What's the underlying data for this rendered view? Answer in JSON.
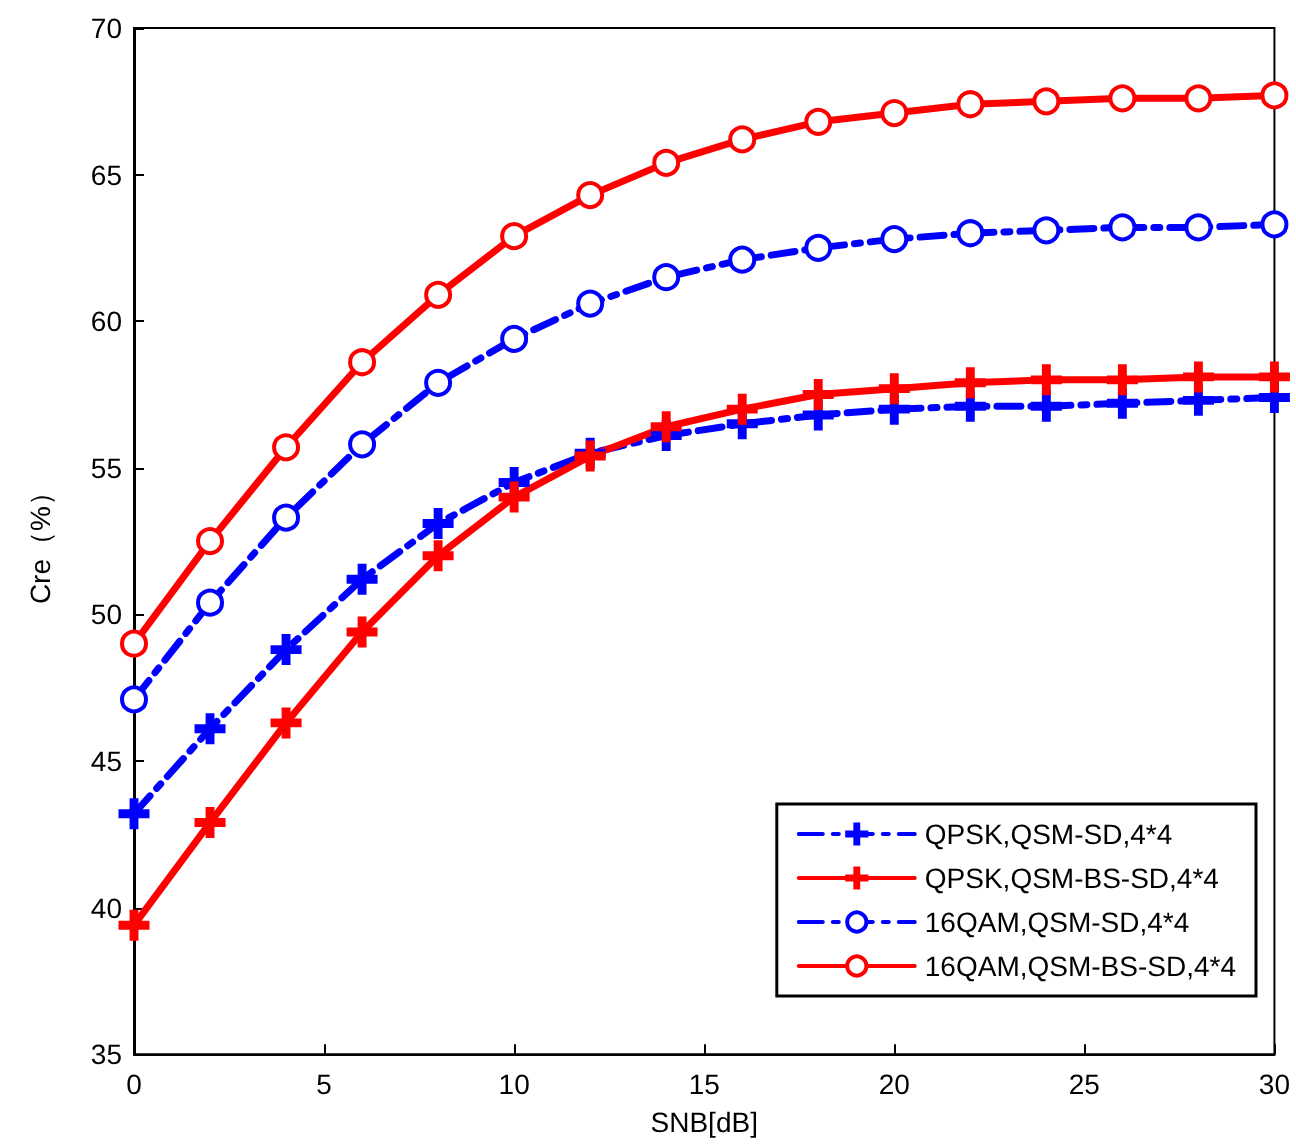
{
  "chart_data": {
    "type": "line",
    "xlabel": "SNB[dB]",
    "ylabel": "Cre（%）",
    "x": [
      0,
      2,
      4,
      6,
      8,
      10,
      12,
      14,
      16,
      18,
      20,
      22,
      24,
      26,
      28,
      30
    ],
    "series": [
      {
        "name": "QPSK,QSM-SD,4*4",
        "color": "#0000ff",
        "marker": "cross",
        "line_style": "dashdot",
        "values": [
          43.2,
          46.1,
          48.8,
          51.2,
          53.1,
          54.5,
          55.5,
          56.1,
          56.5,
          56.8,
          57.0,
          57.1,
          57.1,
          57.2,
          57.3,
          57.4
        ]
      },
      {
        "name": "QPSK,QSM-BS-SD,4*4",
        "color": "#ff0000",
        "marker": "cross",
        "line_style": "solid",
        "values": [
          39.4,
          42.9,
          46.3,
          49.4,
          52.0,
          54.0,
          55.4,
          56.4,
          57.0,
          57.5,
          57.7,
          57.9,
          58.0,
          58.0,
          58.1,
          58.1
        ]
      },
      {
        "name": "16QAM,QSM-SD,4*4",
        "color": "#0000ff",
        "marker": "circle",
        "line_style": "dashdot",
        "values": [
          47.1,
          50.4,
          53.3,
          55.8,
          57.9,
          59.4,
          60.6,
          61.5,
          62.1,
          62.5,
          62.8,
          63.0,
          63.1,
          63.2,
          63.2,
          63.3
        ]
      },
      {
        "name": "16QAM,QSM-BS-SD,4*4",
        "color": "#ff0000",
        "marker": "circle",
        "line_style": "solid",
        "values": [
          49.0,
          52.5,
          55.7,
          58.6,
          60.9,
          62.9,
          64.3,
          65.4,
          66.2,
          66.8,
          67.1,
          67.4,
          67.5,
          67.6,
          67.6,
          67.7
        ]
      }
    ],
    "xlim": [
      0,
      30
    ],
    "xticks": [
      0,
      5,
      10,
      15,
      20,
      25,
      30
    ],
    "ylim": [
      35,
      70
    ],
    "yticks": [
      35,
      40,
      45,
      50,
      55,
      60,
      65,
      70
    ],
    "grid": false,
    "legend": "bottom right"
  }
}
